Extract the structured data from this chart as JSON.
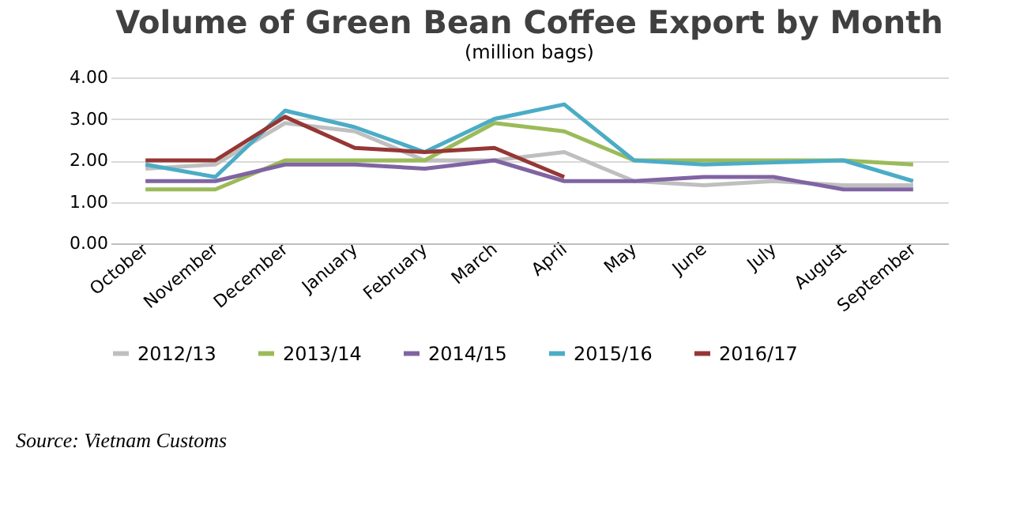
{
  "chart_data": {
    "type": "line",
    "title": "Volume of Green Bean Coffee Export by Month",
    "subtitle": "(million bags)",
    "categories": [
      "October",
      "November",
      "December",
      "January",
      "February",
      "March",
      "April",
      "May",
      "June",
      "July",
      "August",
      "September"
    ],
    "series": [
      {
        "name": "2012/13",
        "color": "#bfbfbf",
        "values": [
          1.8,
          1.9,
          2.9,
          2.7,
          2.0,
          2.0,
          2.2,
          1.5,
          1.4,
          1.5,
          1.4,
          1.4
        ]
      },
      {
        "name": "2013/14",
        "color": "#9bbb59",
        "values": [
          1.3,
          1.3,
          2.0,
          2.0,
          2.0,
          2.9,
          2.7,
          2.0,
          2.0,
          2.0,
          2.0,
          1.9
        ]
      },
      {
        "name": "2014/15",
        "color": "#8064a2",
        "values": [
          1.5,
          1.5,
          1.9,
          1.9,
          1.8,
          2.0,
          1.5,
          1.5,
          1.6,
          1.6,
          1.3,
          1.3
        ]
      },
      {
        "name": "2015/16",
        "color": "#4bacc6",
        "values": [
          1.9,
          1.6,
          3.2,
          2.8,
          2.2,
          3.0,
          3.35,
          2.0,
          1.9,
          1.95,
          2.0,
          1.5
        ]
      },
      {
        "name": "2016/17",
        "color": "#953735",
        "values": [
          2.0,
          2.0,
          3.05,
          2.3,
          2.2,
          2.3,
          1.6,
          null,
          null,
          null,
          null,
          null
        ]
      }
    ],
    "ylim": [
      0,
      4
    ],
    "yticks": [
      {
        "value": 0,
        "label": "0.00"
      },
      {
        "value": 1,
        "label": "1.00"
      },
      {
        "value": 2,
        "label": "2.00"
      },
      {
        "value": 3,
        "label": "3.00"
      },
      {
        "value": 4,
        "label": "4.00"
      }
    ],
    "grid": "y",
    "legend": "bottom",
    "marker": "none",
    "line_style": "solid",
    "annotations": [
      "Source: Vietnam Customs"
    ]
  }
}
